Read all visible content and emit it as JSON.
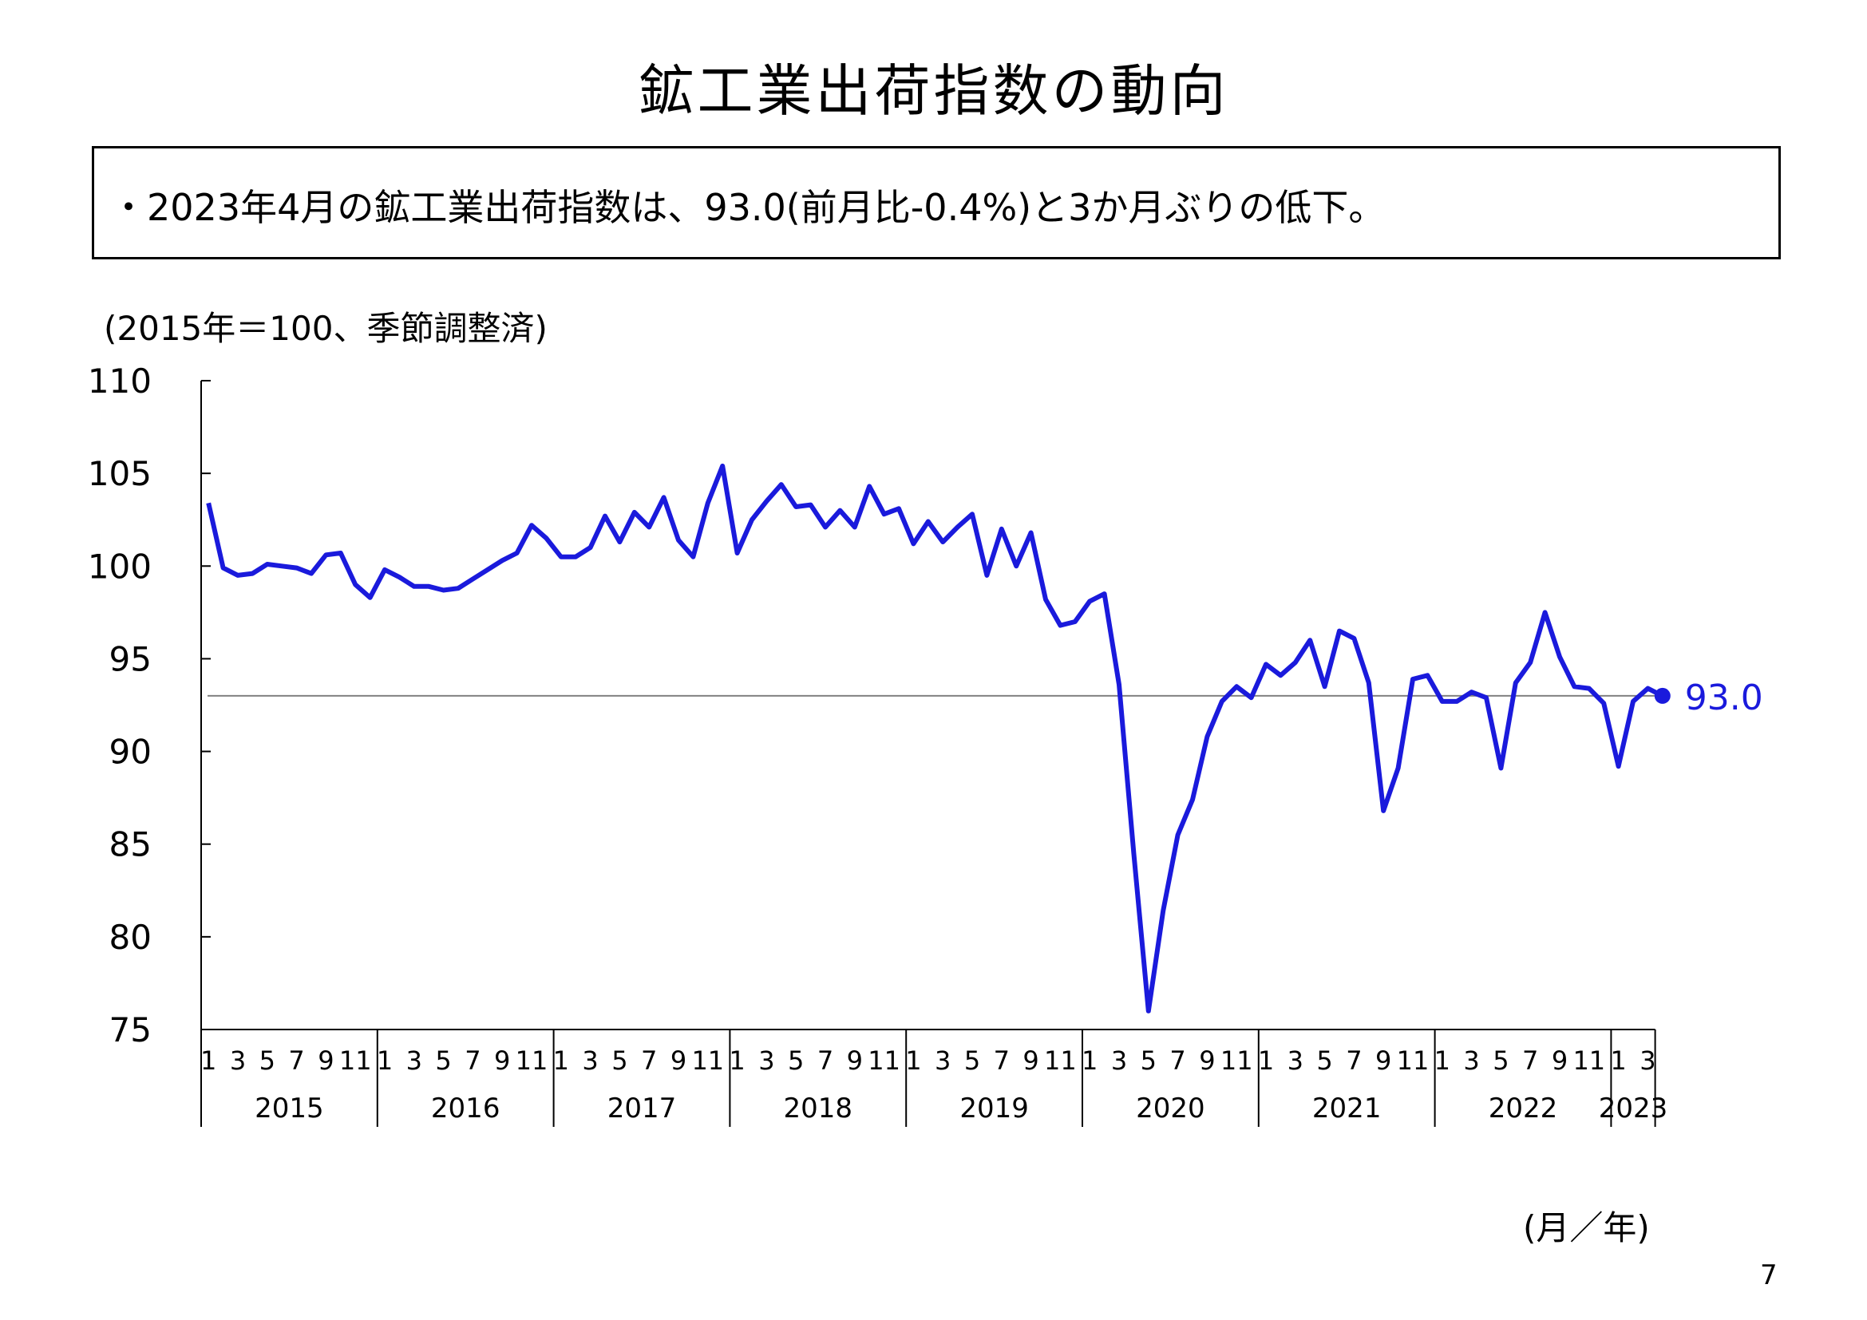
{
  "title": "鉱工業出荷指数の動向",
  "summary": "・2023年4月の鉱工業出荷指数は、93.0(前月比-0.4%)と3か月ぶりの低下。",
  "unit_note": "(2015年＝100、季節調整済)",
  "x_unit": "(月／年)",
  "page_number": "7",
  "chart_data": {
    "type": "line",
    "title": "",
    "xlabel": "(月／年)",
    "ylabel": "(2015年＝100、季節調整済)",
    "ylim": [
      75,
      110
    ],
    "yticks": [
      75,
      80,
      85,
      90,
      95,
      100,
      105,
      110
    ],
    "x_month_ticks": [
      "1",
      "3",
      "5",
      "7",
      "9",
      "11"
    ],
    "years": [
      "2015",
      "2016",
      "2017",
      "2018",
      "2019",
      "2020",
      "2021",
      "2022",
      "2023"
    ],
    "months_2023": [
      "1",
      "3"
    ],
    "reference_line": 93.0,
    "last_label": "93.0",
    "line_color": "#1a1adc",
    "ref_color": "#808080",
    "series": [
      {
        "values": [
          103.4,
          99.9,
          99.5,
          99.6,
          100.1,
          100.0,
          99.9,
          99.6,
          100.6,
          100.7,
          99.0,
          98.3,
          99.8,
          99.4,
          98.9,
          98.9,
          98.7,
          98.8,
          99.3,
          99.8,
          100.3,
          100.7,
          102.2,
          101.5,
          100.5,
          100.5,
          101.0,
          102.7,
          101.3,
          102.9,
          102.1,
          103.7,
          101.4,
          100.5,
          103.4,
          105.4,
          100.7,
          102.5,
          103.5,
          104.4,
          103.2,
          103.3,
          102.1,
          103.0,
          102.1,
          104.3,
          102.8,
          103.1,
          101.2,
          102.4,
          101.3,
          102.1,
          102.8,
          99.5,
          102.0,
          100.0,
          101.8,
          98.2,
          96.8,
          97.0,
          98.1,
          98.5,
          93.6,
          84.5,
          76.0,
          81.4,
          85.5,
          87.4,
          90.8,
          92.7,
          93.5,
          92.9,
          94.7,
          94.1,
          94.8,
          96.0,
          93.5,
          96.5,
          96.1,
          93.7,
          86.8,
          89.1,
          93.9,
          94.1,
          92.7,
          92.7,
          93.2,
          92.9,
          89.1,
          93.7,
          94.8,
          97.5,
          95.1,
          93.5,
          93.4,
          92.6,
          89.2,
          92.7,
          93.4,
          93.0
        ]
      }
    ]
  }
}
